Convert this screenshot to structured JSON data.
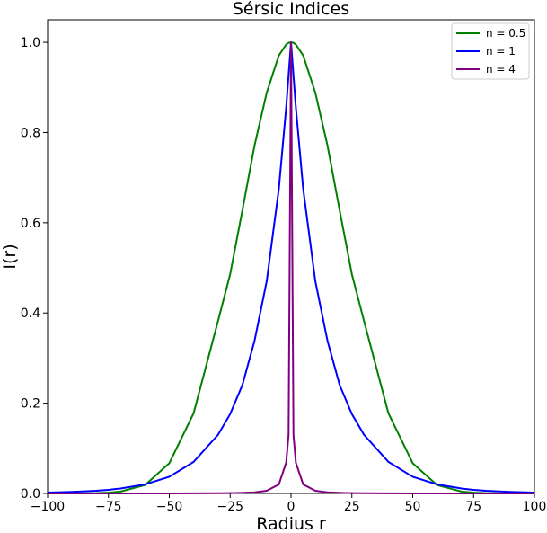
{
  "chart_data": {
    "type": "line",
    "title": "Sérsic Indices",
    "xlabel": "Radius r",
    "ylabel": "I(r)",
    "xlim": [
      -100,
      100
    ],
    "ylim": [
      0,
      1.05
    ],
    "x_ticks": [
      -100,
      -75,
      -50,
      -25,
      0,
      25,
      50,
      75,
      100
    ],
    "x_tick_labels": [
      "−100",
      "−75",
      "−50",
      "−25",
      "0",
      "25",
      "50",
      "75",
      "100"
    ],
    "y_ticks": [
      0.0,
      0.2,
      0.4,
      0.6,
      0.8,
      1.0
    ],
    "y_tick_labels": [
      "0.0",
      "0.2",
      "0.4",
      "0.6",
      "0.8",
      "1.0"
    ],
    "grid": false,
    "legend_position": "top-right",
    "x": [
      -100,
      -90,
      -80,
      -75,
      -70,
      -60,
      -50,
      -40,
      -30,
      -25,
      -20,
      -15,
      -10,
      -5,
      -2,
      -1,
      0,
      1,
      2,
      5,
      10,
      15,
      20,
      25,
      30,
      40,
      50,
      60,
      70,
      75,
      80,
      90,
      100
    ],
    "series": [
      {
        "name": "n = 0.5",
        "color": "#008000",
        "values": [
          0.0,
          0.0001,
          0.0007,
          0.0018,
          0.0042,
          0.0185,
          0.067,
          0.178,
          0.382,
          0.486,
          0.627,
          0.771,
          0.888,
          0.971,
          0.995,
          0.999,
          1.0,
          0.999,
          0.995,
          0.971,
          0.888,
          0.771,
          0.627,
          0.486,
          0.382,
          0.178,
          0.067,
          0.0185,
          0.0042,
          0.0018,
          0.0007,
          0.0001,
          0.0
        ]
      },
      {
        "name": "n = 1",
        "color": "#0000ff",
        "values": [
          0.002,
          0.0035,
          0.006,
          0.008,
          0.011,
          0.02,
          0.037,
          0.07,
          0.13,
          0.176,
          0.24,
          0.338,
          0.47,
          0.675,
          0.855,
          0.927,
          1.0,
          0.927,
          0.855,
          0.675,
          0.47,
          0.338,
          0.24,
          0.176,
          0.13,
          0.07,
          0.037,
          0.02,
          0.011,
          0.008,
          0.006,
          0.0035,
          0.002
        ]
      },
      {
        "name": "n = 4",
        "color": "#800080",
        "values": [
          0.0,
          0.0,
          0.0,
          0.0,
          0.0,
          0.0001,
          0.0001,
          0.0002,
          0.0005,
          0.0008,
          0.0014,
          0.0026,
          0.006,
          0.02,
          0.068,
          0.13,
          1.0,
          0.13,
          0.068,
          0.02,
          0.006,
          0.0026,
          0.0014,
          0.0008,
          0.0005,
          0.0002,
          0.0001,
          0.0001,
          0.0,
          0.0,
          0.0,
          0.0,
          0.0
        ]
      }
    ]
  }
}
